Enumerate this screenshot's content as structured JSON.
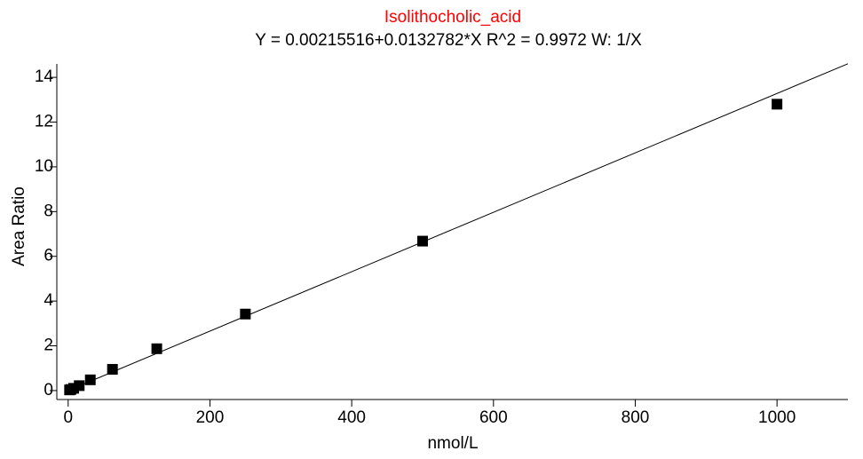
{
  "chart_data": {
    "type": "scatter",
    "title": "Isolithocholic_acid",
    "title_color": "#ff0000",
    "subtitle": "Y = 0.00215516+0.0132782*X   R^2 = 0.9972   W: 1/X",
    "x_label": "nmol/L",
    "y_label": "Area Ratio",
    "x": [
      1.95,
      3.9,
      7.8,
      15.6,
      31.25,
      62.5,
      125,
      250,
      500,
      1000
    ],
    "values": [
      0.03,
      0.05,
      0.1,
      0.22,
      0.48,
      0.95,
      1.87,
      3.42,
      6.68,
      12.8
    ],
    "color": "#000000",
    "line": {
      "x": [
        0,
        1100
      ],
      "values": [
        0.00215516,
        14.608
      ],
      "color": "#000000"
    },
    "xlim": [
      -16,
      1100
    ],
    "xticks": [
      0,
      200,
      400,
      600,
      800,
      1000
    ],
    "ylim": [
      -0.4,
      14.6
    ],
    "yticks": [
      0,
      2,
      4,
      6,
      8,
      10,
      12,
      14
    ],
    "grid": false
  }
}
